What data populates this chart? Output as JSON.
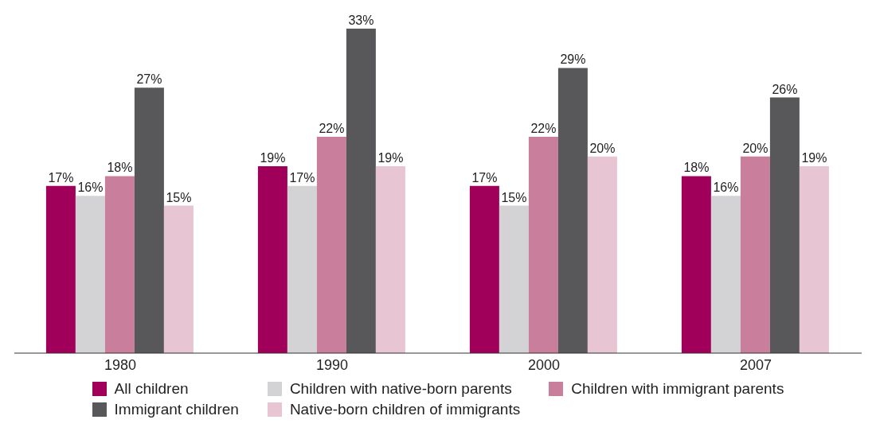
{
  "chart_data": {
    "type": "bar",
    "categories": [
      "1980",
      "1990",
      "2000",
      "2007"
    ],
    "series": [
      {
        "name": "All children",
        "color": "#a0005a",
        "values": [
          17,
          19,
          17,
          18
        ],
        "value_labels": [
          "17%",
          "19%",
          "17%",
          "18%"
        ]
      },
      {
        "name": "Children with native-born parents",
        "color": "#d3d3d5",
        "values": [
          16,
          17,
          15,
          16
        ],
        "value_labels": [
          "16%",
          "17%",
          "15%",
          "16%"
        ]
      },
      {
        "name": "Children with immigrant parents",
        "color": "#c97e9c",
        "values": [
          18,
          22,
          22,
          20
        ],
        "value_labels": [
          "18%",
          "22%",
          "22%",
          "20%"
        ]
      },
      {
        "name": "Immigrant children",
        "color": "#58585a",
        "values": [
          27,
          33,
          29,
          26
        ],
        "value_labels": [
          "27%",
          "33%",
          "29%",
          "26%"
        ]
      },
      {
        "name": "Native-born children of immigrants",
        "color": "#e8c5d3",
        "values": [
          15,
          19,
          20,
          19
        ],
        "value_labels": [
          "15%",
          "19%",
          "20%",
          "19%"
        ]
      }
    ],
    "legend": "bottom",
    "grid": false
  }
}
